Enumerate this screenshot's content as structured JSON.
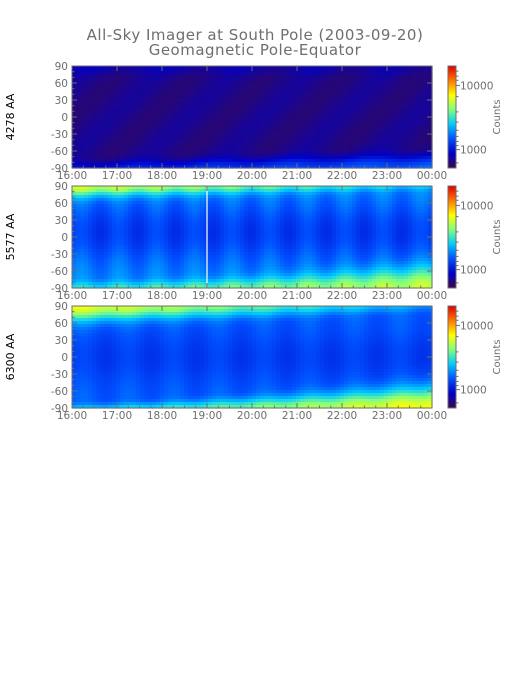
{
  "figure": {
    "title": "All-Sky Imager at South Pole (2003-09-20)",
    "subtitle": "Geomagnetic Pole-Equator"
  },
  "colors": {
    "text": "#6e6e6e",
    "background": "#ffffff",
    "colorscale": [
      "#3c0a4a",
      "#0000c8",
      "#0050ff",
      "#00c8ff",
      "#80ff80",
      "#ffff00",
      "#ff7800",
      "#e00000"
    ]
  },
  "chart_data": [
    {
      "type": "heatmap",
      "ylabel": "4278 AA",
      "colorbar_label": "Counts",
      "colorbar_ticks": [
        "10000",
        "1000"
      ],
      "x_ticks": [
        "16:00",
        "17:00",
        "18:00",
        "19:00",
        "20:00",
        "21:00",
        "22:00",
        "23:00",
        "00:00"
      ],
      "y_ticks": [
        "90",
        "60",
        "30",
        "0",
        "-30",
        "-60",
        "-90"
      ],
      "xlim": [
        "16:00",
        "00:00"
      ],
      "ylim": [
        -90,
        90
      ],
      "description_free_values": {
        "background_level": 0.06,
        "pole_edge_level": 0.22,
        "equator_edge_level": 0.32
      }
    },
    {
      "type": "heatmap",
      "ylabel": "5577 AA",
      "colorbar_label": "Counts",
      "colorbar_ticks": [
        "10000",
        "1000"
      ],
      "x_ticks": [
        "16:00",
        "17:00",
        "18:00",
        "19:00",
        "20:00",
        "21:00",
        "22:00",
        "23:00",
        "00:00"
      ],
      "y_ticks": [
        "90",
        "60",
        "30",
        "0",
        "-30",
        "-60",
        "-90"
      ],
      "xlim": [
        "16:00",
        "00:00"
      ],
      "ylim": [
        -90,
        90
      ],
      "gap_time": "19:00"
    },
    {
      "type": "heatmap",
      "ylabel": "6300 AA",
      "colorbar_label": "Counts",
      "colorbar_ticks": [
        "10000",
        "1000"
      ],
      "x_ticks": [
        "16:00",
        "17:00",
        "18:00",
        "19:00",
        "20:00",
        "21:00",
        "22:00",
        "23:00",
        "00:00"
      ],
      "y_ticks": [
        "90",
        "60",
        "30",
        "0",
        "-30",
        "-60",
        "-90"
      ],
      "xlim": [
        "16:00",
        "00:00"
      ],
      "ylim": [
        -90,
        90
      ]
    }
  ]
}
